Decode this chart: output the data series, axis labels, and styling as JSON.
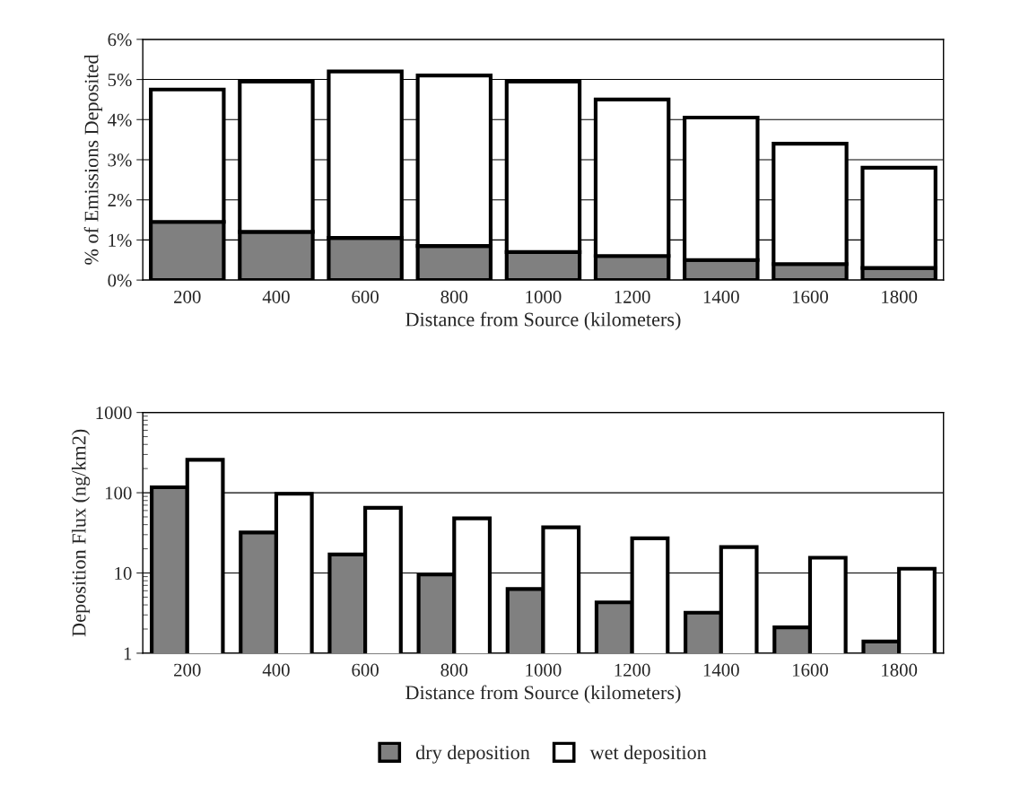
{
  "chart_data": [
    {
      "type": "bar",
      "stacked": true,
      "xlabel": "Distance from Source (kilometers)",
      "ylabel": "% of Emissions Deposited",
      "categories": [
        "200",
        "400",
        "600",
        "800",
        "1000",
        "1200",
        "1400",
        "1600",
        "1800"
      ],
      "series": [
        {
          "color": "#808080",
          "values": [
            1.45,
            1.2,
            1.05,
            0.85,
            0.7,
            0.6,
            0.5,
            0.4,
            0.3
          ]
        },
        {
          "color": "#ffffff",
          "values": [
            3.3,
            3.75,
            4.15,
            4.25,
            4.25,
            3.9,
            3.55,
            3.0,
            2.5
          ]
        }
      ],
      "ylim": [
        0,
        6
      ],
      "yticks": [
        {
          "value": 0,
          "label": "0%"
        },
        {
          "value": 1,
          "label": "1%"
        },
        {
          "value": 2,
          "label": "2%"
        },
        {
          "value": 3,
          "label": "3%"
        },
        {
          "value": 4,
          "label": "4%"
        },
        {
          "value": 5,
          "label": "5%"
        },
        {
          "value": 6,
          "label": "6%"
        }
      ],
      "grid": "y"
    },
    {
      "type": "bar",
      "xlabel": "Distance from Source (kilometers)",
      "ylabel": "Deposition Flux (ng/km2)",
      "categories": [
        "200",
        "400",
        "600",
        "800",
        "1000",
        "1200",
        "1400",
        "1600",
        "1800"
      ],
      "series": [
        {
          "name": "dry deposition",
          "color": "#808080",
          "values": [
            117,
            32,
            17,
            9.6,
            6.3,
            4.3,
            3.2,
            2.1,
            1.4
          ]
        },
        {
          "name": "wet deposition",
          "color": "#ffffff",
          "values": [
            257,
            97,
            65,
            48,
            37,
            27,
            21,
            15.5,
            11.3
          ]
        }
      ],
      "log": true,
      "ylim": [
        1,
        1000
      ],
      "yticks": [
        1,
        10,
        100,
        1000
      ],
      "grid": "y",
      "legend": "bottom"
    }
  ]
}
